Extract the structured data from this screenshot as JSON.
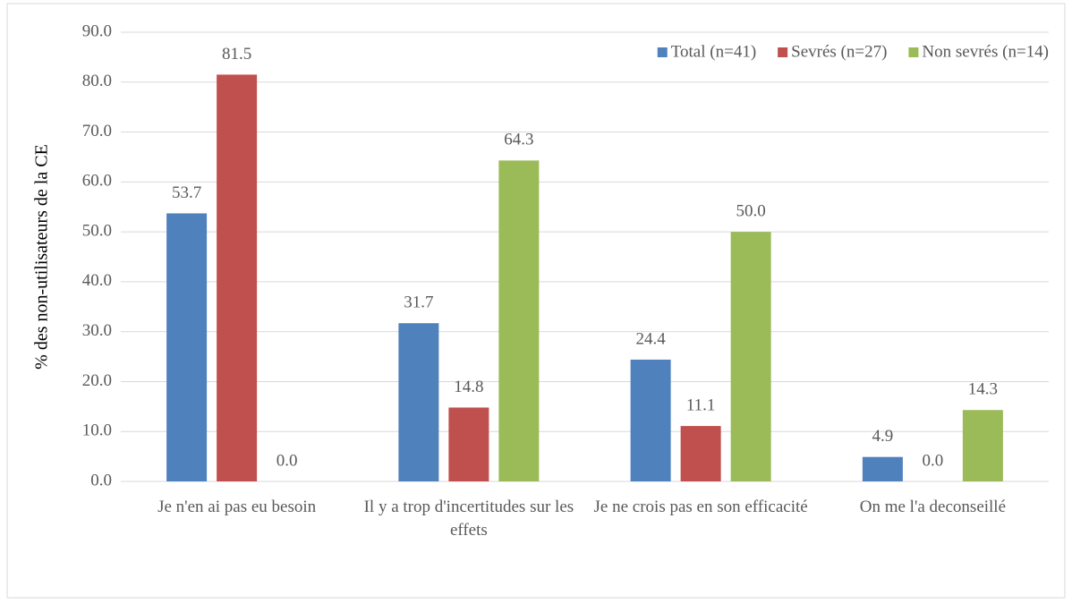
{
  "chart_data": {
    "type": "bar",
    "y_label": "% des non-utilisateurs de la CE",
    "categories": [
      "Je n'en ai pas eu besoin",
      "Il y a trop d'incertitudes sur les effets",
      "Je ne crois pas en son efficacité",
      "On me l'a deconseillé"
    ],
    "series": [
      {
        "name": "Total (n=41)",
        "color": "#4f81bd",
        "values": [
          53.7,
          31.7,
          24.4,
          4.9
        ],
        "value_labels": [
          "53.7",
          "31.7",
          "24.4",
          "4.9"
        ]
      },
      {
        "name": "Sevrés (n=27)",
        "color": "#c0504d",
        "values": [
          81.5,
          14.8,
          11.1,
          0
        ],
        "value_labels": [
          "81.5",
          "14.8",
          "11.1",
          "0.0"
        ]
      },
      {
        "name": "Non sevrés (n=14)",
        "color": "#9bbb59",
        "values": [
          0,
          64.3,
          50,
          14.3
        ],
        "value_labels": [
          "0.0",
          "64.3",
          "50.0",
          "14.3"
        ]
      }
    ],
    "ylim": [
      0,
      90
    ],
    "yticks": [
      {
        "value": 0,
        "label": "0.0"
      },
      {
        "value": 10,
        "label": "10.0"
      },
      {
        "value": 20,
        "label": "20.0"
      },
      {
        "value": 30,
        "label": "30.0"
      },
      {
        "value": 40,
        "label": "40.0"
      },
      {
        "value": 50,
        "label": "50.0"
      },
      {
        "value": 60,
        "label": "60.0"
      },
      {
        "value": 70,
        "label": "70.0"
      },
      {
        "value": 80,
        "label": "80.0"
      },
      {
        "value": 90,
        "label": "90.0"
      }
    ],
    "grid": true,
    "legend": "top-right"
  }
}
